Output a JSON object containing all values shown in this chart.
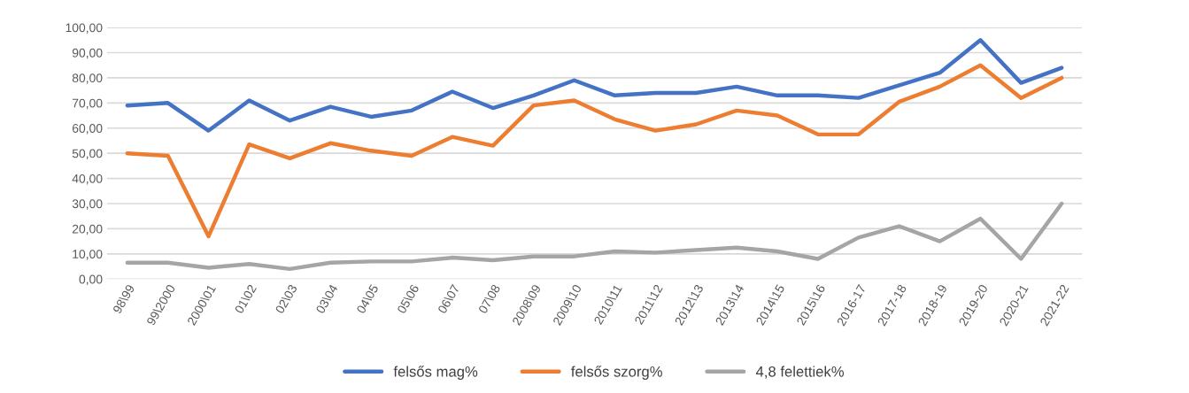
{
  "chart_data": {
    "type": "line",
    "categories": [
      "98\\99",
      "99\\2000",
      "2000\\01",
      "01\\02",
      "02\\03",
      "03\\04",
      "04\\05",
      "05\\06",
      "06\\07",
      "07\\08",
      "2008\\09",
      "2009\\10",
      "2010\\11",
      "2011\\12",
      "2012\\13",
      "2013\\14",
      "2014\\15",
      "2015\\16",
      "2016-17",
      "2017-18",
      "2018-19",
      "2019-20",
      "2020-21",
      "2021-22"
    ],
    "series": [
      {
        "name": "felsős mag%",
        "color": "#4472c4",
        "values": [
          69,
          70,
          59,
          71,
          63,
          68.5,
          64.5,
          67,
          74.5,
          68,
          73,
          79,
          73,
          74,
          74,
          76.5,
          73,
          73,
          72,
          77,
          82,
          95,
          78,
          84
        ]
      },
      {
        "name": "felsős szorg%",
        "color": "#ed7d31",
        "values": [
          50,
          49,
          17,
          53.5,
          48,
          54,
          51,
          49,
          56.5,
          53,
          69,
          71,
          63.5,
          59,
          61.5,
          67,
          65,
          57.5,
          57.5,
          70.5,
          76.5,
          85,
          72,
          80
        ]
      },
      {
        "name": "4,8 felettiek%",
        "color": "#a5a5a5",
        "values": [
          6.5,
          6.5,
          4.5,
          6,
          4,
          6.5,
          7,
          7,
          8.5,
          7.5,
          9,
          9,
          11,
          10.5,
          11.5,
          12.5,
          11,
          8,
          16.5,
          21,
          15,
          24,
          8,
          30
        ]
      }
    ],
    "ylim": [
      0,
      100
    ],
    "yticks": [
      {
        "value": 0,
        "label": "0,00"
      },
      {
        "value": 10,
        "label": "10,00"
      },
      {
        "value": 20,
        "label": "20,00"
      },
      {
        "value": 30,
        "label": "30,00"
      },
      {
        "value": 40,
        "label": "40,00"
      },
      {
        "value": 50,
        "label": "50,00"
      },
      {
        "value": 60,
        "label": "60,00"
      },
      {
        "value": 70,
        "label": "70,00"
      },
      {
        "value": 80,
        "label": "80,00"
      },
      {
        "value": 90,
        "label": "90,00"
      },
      {
        "value": 100,
        "label": "100,00"
      }
    ],
    "grid": "y",
    "legend": "bottom",
    "marker": "none",
    "line_style": "solid"
  }
}
